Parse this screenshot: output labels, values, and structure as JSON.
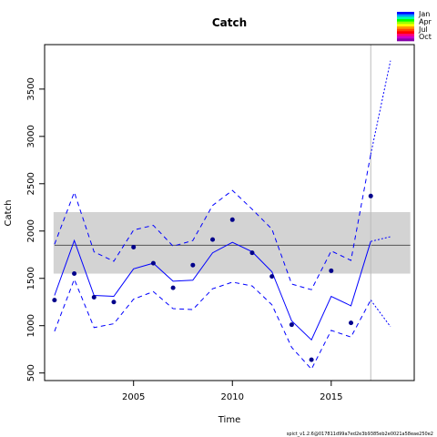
{
  "chart_data": {
    "type": "line",
    "title": "Catch",
    "xlabel": "Time",
    "ylabel": "Catch",
    "xlim": [
      2000.5,
      2019.2
    ],
    "ylim": [
      420,
      3970
    ],
    "x_ticks": [
      2005,
      2010,
      2015
    ],
    "y_ticks": [
      500,
      1000,
      1500,
      2000,
      2500,
      3000,
      3500
    ],
    "observed": {
      "x": [
        2001,
        2002,
        2003,
        2004,
        2005,
        2006,
        2007,
        2008,
        2009,
        2010,
        2011,
        2012,
        2013,
        2014,
        2015,
        2016,
        2017
      ],
      "y": [
        1270,
        1550,
        1300,
        1250,
        1830,
        1660,
        1400,
        1640,
        1910,
        2120,
        1770,
        1520,
        1010,
        640,
        1580,
        1030,
        2370
      ],
      "color": "#00008b"
    },
    "estimate": {
      "x": [
        2001,
        2002,
        2003,
        2004,
        2005,
        2006,
        2007,
        2008,
        2009,
        2010,
        2011,
        2012,
        2013,
        2014,
        2015,
        2016,
        2017
      ],
      "y": [
        1320,
        1900,
        1320,
        1310,
        1600,
        1660,
        1470,
        1480,
        1770,
        1880,
        1780,
        1570,
        1050,
        850,
        1310,
        1210,
        1890
      ],
      "lower": [
        940,
        1490,
        980,
        1020,
        1280,
        1360,
        1180,
        1170,
        1390,
        1460,
        1420,
        1220,
        770,
        540,
        950,
        880,
        1270
      ],
      "upper": [
        1860,
        2410,
        1780,
        1680,
        2010,
        2060,
        1840,
        1900,
        2270,
        2430,
        2230,
        2020,
        1440,
        1380,
        1790,
        1690,
        2810
      ],
      "color": "#0000ff"
    },
    "forecast": {
      "x": [
        2017,
        2018
      ],
      "y": [
        1890,
        1940
      ],
      "lower": [
        1270,
        990
      ],
      "upper": [
        2810,
        3800
      ],
      "color": "#0000ff"
    },
    "msy_line": {
      "y": 1850,
      "color": "#555555"
    },
    "msy_band": {
      "lower": 1550,
      "upper": 2200,
      "color": "#d3d3d3"
    },
    "vline": {
      "x": 2017,
      "color": "#bbbbbb"
    },
    "season_legend": {
      "labels": [
        "Jan",
        "Apr",
        "Jul",
        "Oct"
      ],
      "colors": [
        "#0000ff",
        "#0099ff",
        "#00ffaa",
        "#00ff00",
        "#99ff00",
        "#ffff00",
        "#ff9900",
        "#ff4400",
        "#ff0000",
        "#ff0077",
        "#cc00cc",
        "#8800aa"
      ]
    }
  },
  "footer": "spict_v1.2.6@017811d99a7ed2e3b9385eb2e0021a58eae250e2"
}
